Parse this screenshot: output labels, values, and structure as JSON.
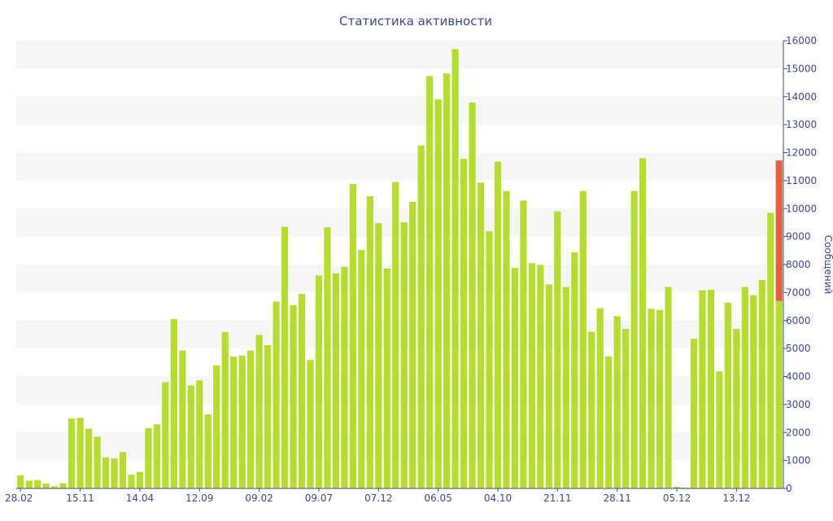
{
  "chart_data": {
    "type": "bar",
    "title": "Статистика активности",
    "xlabel": "",
    "ylabel": "Сообщений",
    "ylim": [
      0,
      16000
    ],
    "yticks": [
      "0",
      "1000",
      "2000",
      "3000",
      "4000",
      "5000",
      "6000",
      "7000",
      "8000",
      "9000",
      "10000",
      "11000",
      "12000",
      "13000",
      "14000",
      "15000",
      "16000"
    ],
    "y_axis_position": "right",
    "grid": "horizontal alternating bands",
    "x_tick_labels": [
      "28.02",
      "15.11",
      "14.04",
      "12.09",
      "09.02",
      "09.07",
      "07.12",
      "06.05",
      "04.10",
      "21.11",
      "28.11",
      "05.12",
      "13.12"
    ],
    "bar_color": "#b5dd2e",
    "highlight_color": "#e0643a",
    "series": [
      {
        "values": [
          470,
          280,
          300,
          170,
          80,
          180,
          2500,
          2520,
          2140,
          1850,
          1110,
          1070,
          1300,
          490,
          590,
          2160,
          2290,
          3800,
          6050,
          4930,
          3680,
          3860,
          2650,
          4400,
          5590,
          4710,
          4750,
          4930,
          5490,
          5120,
          6680,
          9350,
          6550,
          6950,
          4590,
          7610,
          9330,
          7690,
          7920,
          10880,
          8520,
          10440,
          9480,
          7860,
          10950,
          9510,
          10240,
          12260,
          14740,
          13900,
          14830,
          15700,
          11780,
          13790,
          10930,
          9190,
          11680,
          10630,
          7880,
          10290,
          8050,
          7990,
          7290,
          9900,
          7200,
          8440,
          10630,
          5600,
          6440,
          4720,
          6160,
          5700,
          10630,
          11800,
          6420,
          6380,
          7200,
          60,
          30,
          5350,
          7080,
          7100,
          4180,
          6640,
          5700,
          7200,
          6910,
          7450,
          9850,
          6700
        ]
      },
      {
        "name": "",
        "values": [
          0,
          0,
          0,
          0,
          0,
          0,
          0,
          0,
          0,
          0,
          0,
          0,
          0,
          0,
          0,
          0,
          0,
          0,
          0,
          0,
          0,
          0,
          0,
          0,
          0,
          0,
          0,
          0,
          0,
          0,
          0,
          0,
          0,
          0,
          0,
          0,
          0,
          0,
          0,
          0,
          0,
          0,
          0,
          0,
          0,
          0,
          0,
          0,
          0,
          0,
          0,
          0,
          0,
          0,
          0,
          0,
          0,
          0,
          0,
          0,
          0,
          0,
          0,
          0,
          0,
          0,
          0,
          0,
          0,
          0,
          0,
          0,
          0,
          0,
          0,
          0,
          0,
          0,
          0,
          0,
          0,
          0,
          0,
          0,
          0,
          0,
          0,
          0,
          0,
          5020
        ]
      }
    ]
  }
}
